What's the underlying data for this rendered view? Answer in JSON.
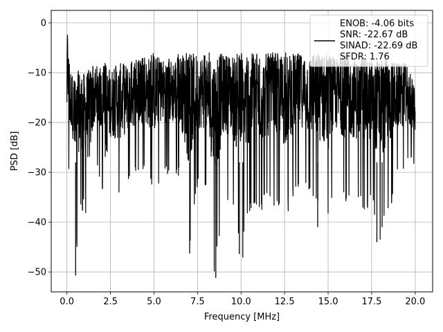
{
  "chart_data": {
    "type": "line",
    "title": "",
    "xlabel": "Frequency [MHz]",
    "ylabel": "PSD [dB]",
    "xlim": [
      -0.9,
      21.0
    ],
    "ylim": [
      -54,
      2.5
    ],
    "xticks": [
      "0.0",
      "2.5",
      "5.0",
      "7.5",
      "10.0",
      "12.5",
      "15.0",
      "17.5",
      "20.0"
    ],
    "yticks": [
      "0",
      "−10",
      "−20",
      "−30",
      "−40",
      "−50"
    ],
    "grid": true,
    "legend_position": "top-right",
    "line_color": "#000000",
    "series": [
      {
        "name": "ENOB: -4.06 bits\nSNR: -22.67 dB\nSINAD: -22.69 dB\nSFDR: 1.76",
        "x": [
          0.0,
          0.02,
          0.05,
          0.1,
          0.2,
          0.3,
          0.5,
          0.7,
          1.0,
          1.3,
          1.5,
          2.0,
          2.2,
          2.5,
          3.0,
          3.5,
          4.0,
          4.5,
          5.0,
          5.5,
          6.0,
          6.5,
          7.0,
          7.5,
          8.0,
          8.5,
          9.0,
          9.5,
          10.0,
          10.5,
          11.0,
          11.5,
          12.0,
          12.5,
          13.0,
          13.5,
          14.0,
          14.5,
          15.0,
          15.5,
          16.0,
          16.5,
          17.0,
          17.5,
          18.0,
          18.5,
          19.0,
          19.5,
          20.0
        ],
        "upper": [
          -14,
          0,
          -2,
          -5,
          -8,
          -10,
          -11,
          -9,
          -10,
          -9,
          -8,
          -9,
          -8,
          -9,
          -8,
          -8,
          -7,
          -7,
          -6,
          -7,
          -7,
          -6,
          -6,
          -6,
          -6,
          -6,
          -6,
          -6,
          -6,
          -6,
          -6,
          -6,
          -6,
          -6,
          -6,
          -6,
          -6,
          -6,
          -6,
          -7,
          -6,
          -7,
          -7,
          -7,
          -7,
          -7,
          -8,
          -8,
          -13
        ],
        "lower": [
          -19,
          -21,
          -27,
          -30,
          -36,
          -29,
          -50.5,
          -38,
          -38,
          -44,
          -32,
          -31,
          -45,
          -34,
          -36,
          -33,
          -31,
          -31,
          -35,
          -30,
          -31,
          -31,
          -46.5,
          -33,
          -34,
          -51.2,
          -35,
          -36,
          -47,
          -38,
          -39,
          -36,
          -38,
          -40,
          -35,
          -33,
          -36,
          -38,
          -41,
          -33,
          -37,
          -36,
          -38,
          -37,
          -44,
          -38,
          -32,
          -30,
          -29
        ]
      }
    ],
    "annotations": [
      {
        "x": 0.5,
        "y": -50.7,
        "text": ""
      },
      {
        "x": 7.05,
        "y": -46.3,
        "text": ""
      },
      {
        "x": 8.55,
        "y": -51.2,
        "text": ""
      },
      {
        "x": 9.9,
        "y": -46.4,
        "text": ""
      },
      {
        "x": 10.1,
        "y": -47.1,
        "text": ""
      },
      {
        "x": 14.4,
        "y": -41.0,
        "text": ""
      },
      {
        "x": 17.8,
        "y": -44.0,
        "text": ""
      },
      {
        "x": 18.1,
        "y": -41.0,
        "text": ""
      }
    ]
  }
}
